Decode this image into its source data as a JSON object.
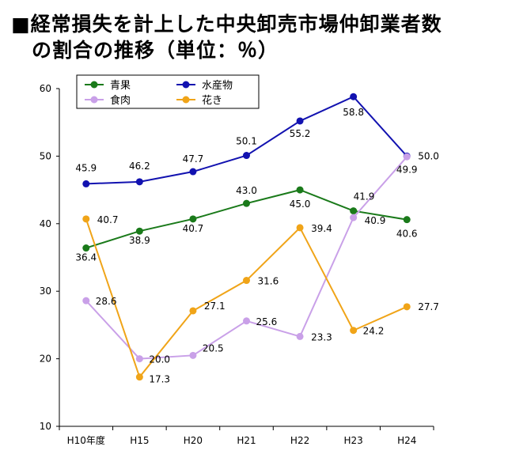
{
  "chart_data": {
    "type": "line",
    "title": "■経常損失を計上した中央卸売市場仲卸業者数",
    "subtitle": "の割合の推移（単位：％）",
    "categories": [
      "H10年度",
      "H15",
      "H20",
      "H21",
      "H22",
      "H23",
      "H24"
    ],
    "ylim": [
      10,
      60
    ],
    "yticks": [
      "10",
      "20",
      "30",
      "40",
      "50",
      "60"
    ],
    "xlabel": "",
    "ylabel": "",
    "grid": false,
    "legend_position": "top-left",
    "series": [
      {
        "name": "青果",
        "color": "#1a7a1a",
        "values": [
          36.4,
          38.9,
          40.7,
          43.0,
          45.0,
          41.9,
          40.6
        ],
        "labels": [
          "36.4",
          "38.9",
          "40.7",
          "43.0",
          "45.0",
          "41.9",
          "40.6"
        ]
      },
      {
        "name": "水産物",
        "color": "#1212b0",
        "values": [
          45.9,
          46.2,
          47.7,
          50.1,
          55.2,
          58.8,
          50.0
        ],
        "labels": [
          "45.9",
          "46.2",
          "47.7",
          "50.1",
          "55.2",
          "58.8",
          "50.0"
        ]
      },
      {
        "name": "食肉",
        "color": "#c9a0e8",
        "values": [
          28.6,
          20.0,
          20.5,
          25.6,
          23.3,
          40.9,
          49.9
        ],
        "labels": [
          "28.6",
          "20.0",
          "20.5",
          "25.6",
          "23.3",
          "40.9",
          "49.9"
        ]
      },
      {
        "name": "花き",
        "color": "#f0a418",
        "values": [
          40.7,
          17.3,
          27.1,
          31.6,
          39.4,
          24.2,
          27.7
        ],
        "labels": [
          "40.7",
          "17.3",
          "27.1",
          "31.6",
          "39.4",
          "24.2",
          "27.7"
        ]
      }
    ]
  }
}
